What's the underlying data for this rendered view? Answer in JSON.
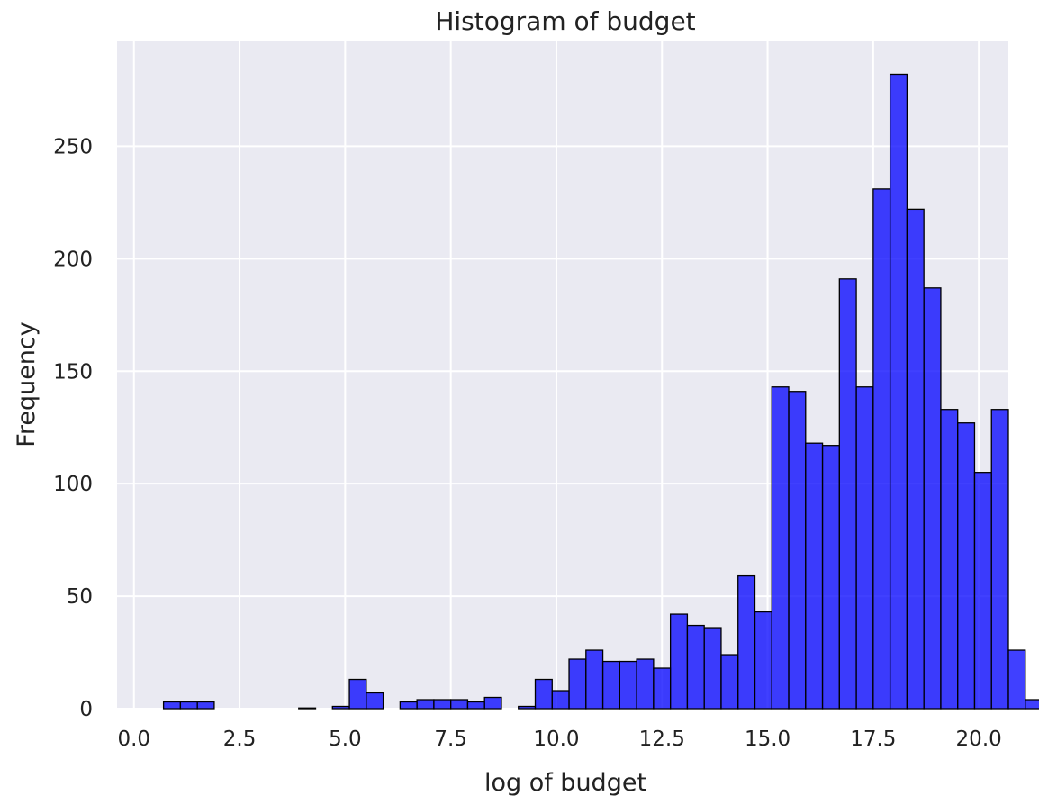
{
  "chart_data": {
    "type": "bar",
    "title": "Histogram of budget",
    "xlabel": "log of budget",
    "ylabel": "Frequency",
    "xlim": [
      -0.4,
      20.7
    ],
    "ylim": [
      0,
      297
    ],
    "xticks": [
      "0.0",
      "2.5",
      "5.0",
      "7.5",
      "10.0",
      "12.5",
      "15.0",
      "17.5",
      "20.0"
    ],
    "yticks": [
      "0",
      "50",
      "100",
      "150",
      "200",
      "250"
    ],
    "grid": true,
    "bar_color": "#0000ff",
    "bar_edge_color": "#000000",
    "background_color": "#eaeaf2",
    "grid_color": "#ffffff",
    "bin_start": 0.7,
    "bin_width": 0.4,
    "values": [
      3,
      3,
      3,
      0,
      0,
      0,
      0,
      0,
      0.3,
      0,
      1,
      13,
      7,
      0,
      3,
      4,
      4,
      4,
      3,
      5,
      0,
      1,
      13,
      8,
      22,
      26,
      21,
      21,
      22,
      18,
      42,
      37,
      36,
      24,
      59,
      43,
      143,
      141,
      118,
      117,
      191,
      143,
      231,
      282,
      222,
      187,
      133,
      127,
      105,
      133,
      26,
      4
    ]
  }
}
